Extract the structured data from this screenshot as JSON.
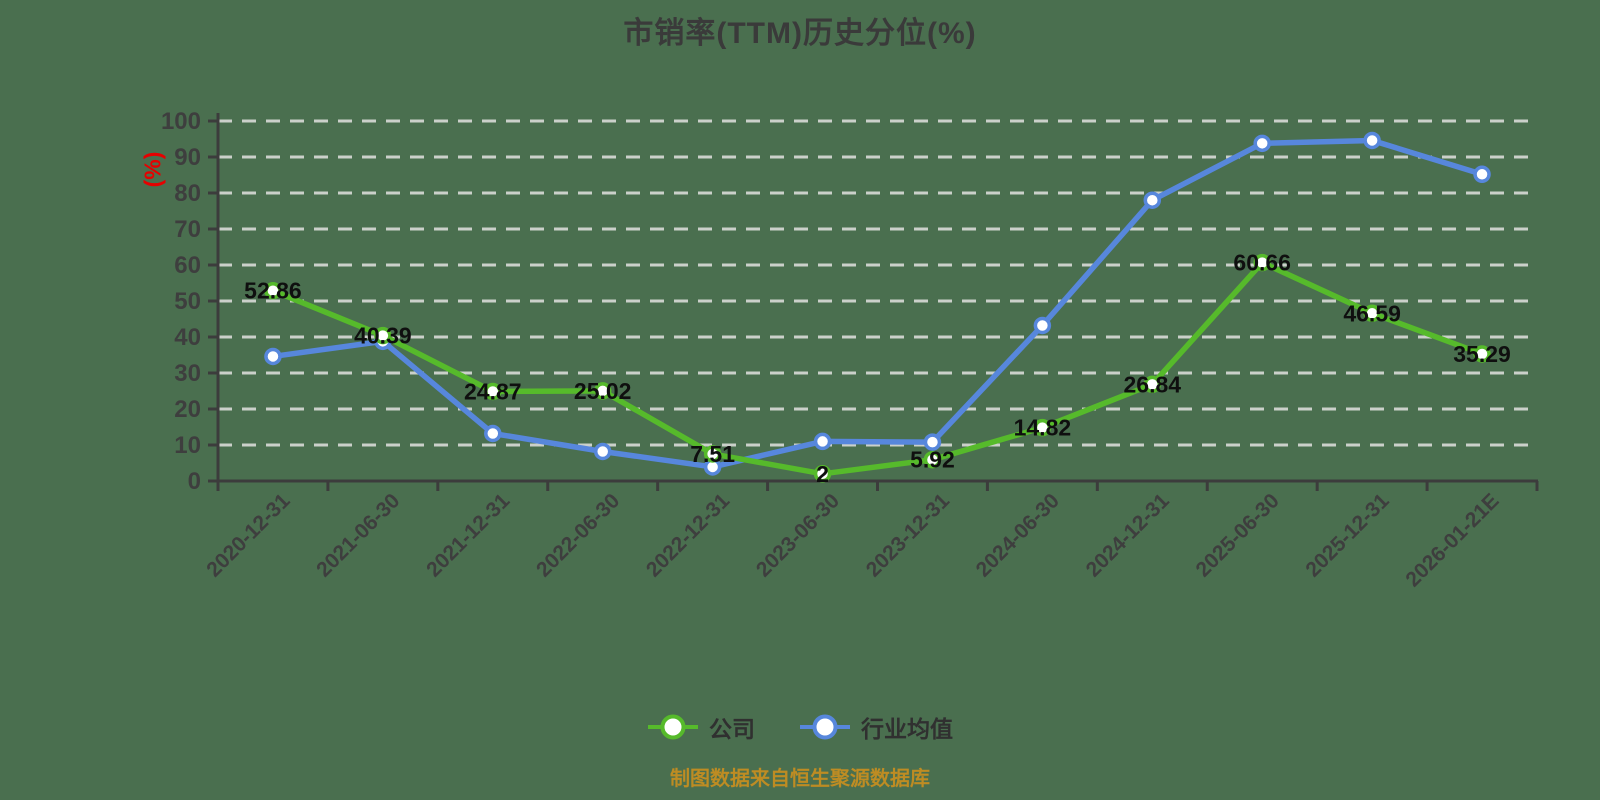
{
  "title": {
    "text": "市销率(TTM)历史分位(%)"
  },
  "y_axis": {
    "name": "(%)",
    "ticks": [
      0,
      10,
      20,
      30,
      40,
      50,
      60,
      70,
      80,
      90,
      100
    ]
  },
  "legend": {
    "items": [
      {
        "label": "公司",
        "color": "#56BA2B"
      },
      {
        "label": "行业均值",
        "color": "#5787DC"
      }
    ]
  },
  "footer": {
    "text": "制图数据来自恒生聚源数据库"
  },
  "colors": {
    "background": "#4A6F4F",
    "title": "#3A3A3A",
    "axis": "#3C3C3C",
    "grid": "#CBD0CA",
    "tick_label": "#3E3E3E",
    "data_label": "#0F0F0F",
    "y_axis_name": "#E60000",
    "footer": "#BE8C23",
    "legend_text": "#303030",
    "marker_fill": "#FFFFFF",
    "company_line": "#56BA2B",
    "industry_line": "#5787DC"
  },
  "chart_data": {
    "type": "line",
    "title": "市销率(TTM)历史分位(%)",
    "ylabel": "(%)",
    "ylim": [
      0,
      100
    ],
    "yticks": [
      0,
      10,
      20,
      30,
      40,
      50,
      60,
      70,
      80,
      90,
      100
    ],
    "grid": "horizontal-dashed",
    "legend_position": "bottom",
    "x_tick_label_rotation": -45,
    "point_label_position": "center",
    "categories": [
      "2020-12-31",
      "2021-06-30",
      "2021-12-31",
      "2022-06-30",
      "2022-12-31",
      "2023-06-30",
      "2023-12-31",
      "2024-06-30",
      "2024-12-31",
      "2025-06-30",
      "2025-12-31",
      "2026-01-21E"
    ],
    "series": [
      {
        "name": "行业均值",
        "color": "#5787DC",
        "show_point_labels": false,
        "values": [
          34.6,
          38.8,
          13.2,
          8.2,
          3.9,
          11.0,
          10.8,
          43.2,
          78.0,
          93.8,
          94.6,
          85.2
        ]
      },
      {
        "name": "公司",
        "color": "#56BA2B",
        "show_point_labels": true,
        "values": [
          52.86,
          40.39,
          24.87,
          25.02,
          7.51,
          2,
          5.92,
          14.82,
          26.84,
          60.66,
          46.59,
          35.29
        ],
        "point_labels": [
          "52.86",
          "40.39",
          "24.87",
          "25.02",
          "7.51",
          "2",
          "5.92",
          "14.82",
          "26.84",
          "60.66",
          "46.59",
          "35.29"
        ]
      }
    ]
  }
}
